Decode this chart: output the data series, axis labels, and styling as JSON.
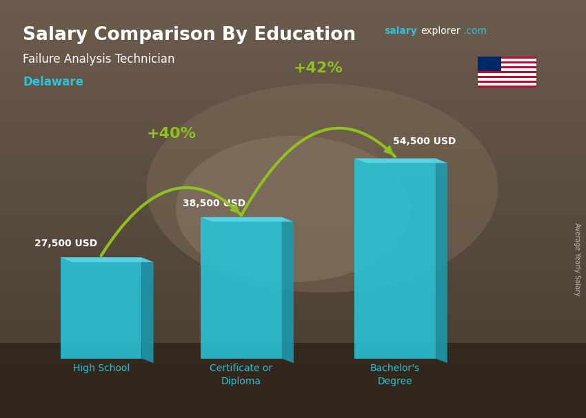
{
  "title": "Salary Comparison By Education",
  "subtitle": "Failure Analysis Technician",
  "location": "Delaware",
  "categories": [
    "High School",
    "Certificate or\nDiploma",
    "Bachelor's\nDegree"
  ],
  "values": [
    27500,
    38500,
    54500
  ],
  "value_labels": [
    "27,500 USD",
    "38,500 USD",
    "54,500 USD"
  ],
  "pct_labels": [
    "+40%",
    "+42%"
  ],
  "bar_color_face": "#29C4D8",
  "bar_color_side": "#1A9BB0",
  "bar_color_top": "#5DD8E8",
  "bg_color_top": "#6b5a4e",
  "bg_color_bottom": "#4a3a2e",
  "title_color": "#FFFFFF",
  "subtitle_color": "#FFFFFF",
  "location_color": "#29C4D8",
  "salary_label_color": "#FFFFFF",
  "pct_color": "#90C020",
  "xlabel_color": "#29C4D8",
  "arrow_color": "#90C020",
  "side_label": "Average Yearly Salary",
  "figsize": [
    8.5,
    6.06
  ]
}
